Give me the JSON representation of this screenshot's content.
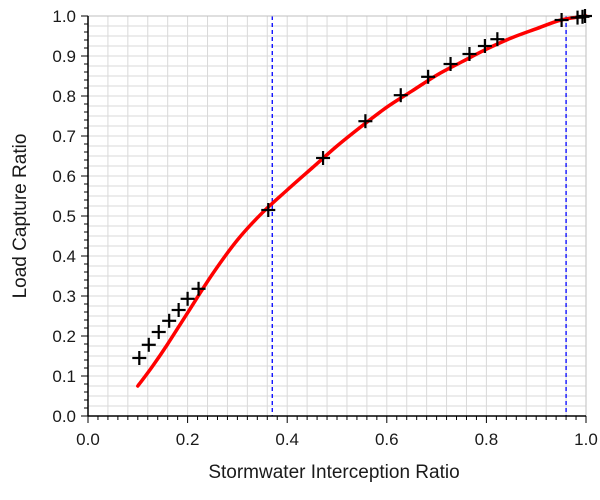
{
  "chart_data": {
    "type": "scatter",
    "xlabel": "Stormwater Interception Ratio",
    "ylabel": "Load Capture Ratio",
    "xlim": [
      0.0,
      1.0
    ],
    "ylim": [
      0.0,
      1.0
    ],
    "x_ticks": [
      "0.0",
      "0.2",
      "0.4",
      "0.6",
      "0.8",
      "1.0"
    ],
    "y_ticks": [
      "0.0",
      "0.1",
      "0.2",
      "0.3",
      "0.4",
      "0.5",
      "0.6",
      "0.7",
      "0.8",
      "0.9",
      "1.0"
    ],
    "grid": true,
    "legend": "none",
    "series": [
      {
        "kind": "points",
        "marker": "plus",
        "color": "#000000",
        "x": [
          0.103,
          0.122,
          0.142,
          0.163,
          0.182,
          0.2,
          0.222,
          0.362,
          0.472,
          0.557,
          0.628,
          0.683,
          0.728,
          0.766,
          0.797,
          0.822,
          0.951,
          0.983,
          0.993,
          0.998
        ],
        "y": [
          0.145,
          0.178,
          0.21,
          0.238,
          0.265,
          0.293,
          0.318,
          0.515,
          0.645,
          0.737,
          0.802,
          0.848,
          0.88,
          0.905,
          0.925,
          0.942,
          0.99,
          0.996,
          0.998,
          1.0
        ]
      },
      {
        "kind": "line",
        "color": "#ff0000",
        "x": [
          0.1,
          0.13,
          0.16,
          0.2,
          0.25,
          0.3,
          0.35,
          0.4,
          0.45,
          0.5,
          0.55,
          0.6,
          0.65,
          0.7,
          0.75,
          0.8,
          0.85,
          0.9,
          0.95,
          1.0
        ],
        "y": [
          0.075,
          0.125,
          0.18,
          0.258,
          0.355,
          0.44,
          0.508,
          0.565,
          0.62,
          0.675,
          0.725,
          0.772,
          0.812,
          0.852,
          0.885,
          0.917,
          0.945,
          0.968,
          0.99,
          1.0
        ]
      }
    ],
    "vertical_lines": [
      {
        "x": 0.37,
        "color": "#0000ff",
        "style": "dashed"
      },
      {
        "x": 0.96,
        "color": "#0000ff",
        "style": "dashed"
      }
    ]
  }
}
